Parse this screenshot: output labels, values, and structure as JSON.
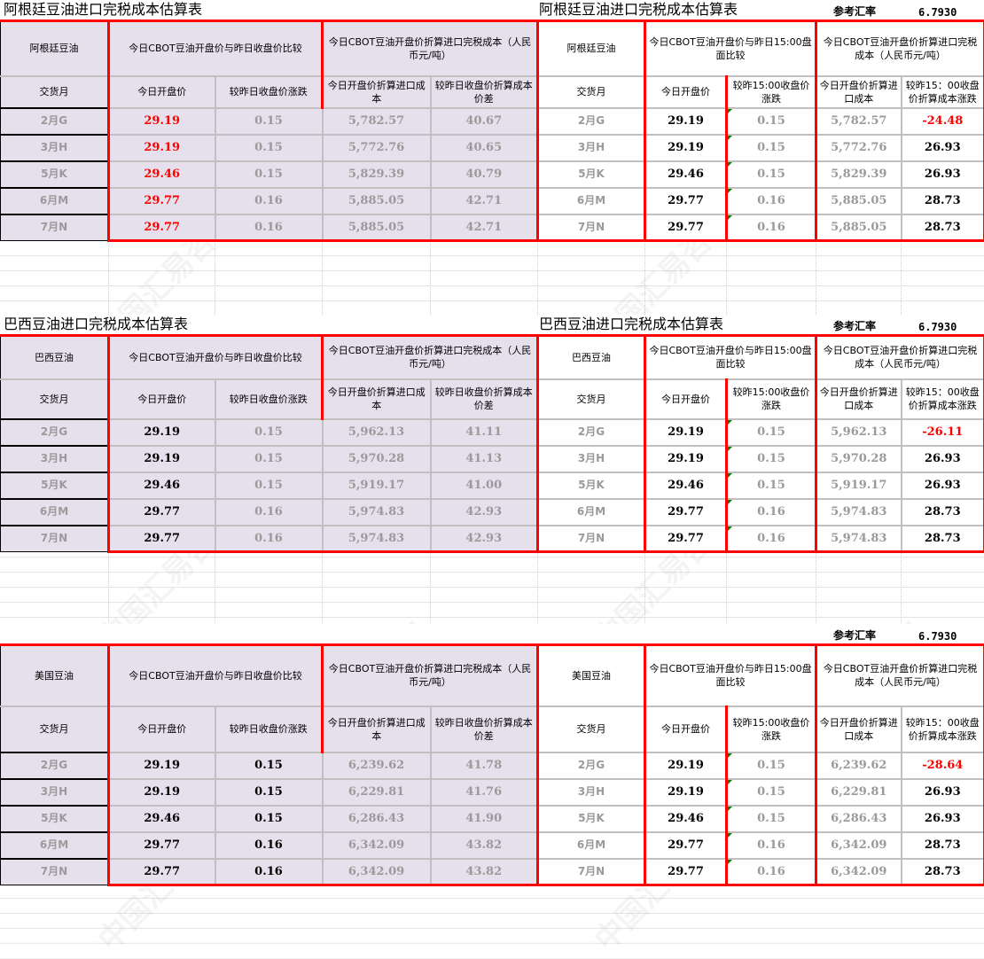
{
  "watermark": "中国汇易咨询网 ChinaJCI.COM",
  "colors": {
    "left_bg": "#e6e0ec",
    "border_red": "#ff0000",
    "highlight_red": "#ff0000",
    "muted_gray": "#9a9a9a"
  },
  "sections": [
    {
      "title_left": "阿根廷豆油进口完税成本估算表",
      "title_right": "阿根廷豆油进口完税成本估算表",
      "rate_label": "参考汇率",
      "rate_value": "6.7930",
      "left": {
        "product": "阿根廷豆油",
        "group1": "今日CBOT豆油开盘价与昨日收盘价比较",
        "group2": "今日CBOT豆油开盘价折算进口完税成本（人民币元/吨）",
        "sub": [
          "交货月",
          "今日开盘价",
          "较昨日收盘价涨跌",
          "今日开盘价折算进口成本",
          "较昨日收盘价折算成本价差"
        ],
        "rows": [
          [
            "2月G",
            "29.19",
            "0.15",
            "5,782.57",
            "40.67"
          ],
          [
            "3月H",
            "29.19",
            "0.15",
            "5,772.76",
            "40.65"
          ],
          [
            "5月K",
            "29.46",
            "0.15",
            "5,829.39",
            "40.79"
          ],
          [
            "6月M",
            "29.77",
            "0.16",
            "5,885.05",
            "42.71"
          ],
          [
            "7月N",
            "29.77",
            "0.16",
            "5,885.05",
            "42.71"
          ]
        ]
      },
      "right": {
        "product": "阿根廷豆油",
        "group1": "今日CBOT豆油开盘价与昨日15:00盘面比较",
        "group2": "今日CBOT豆油开盘价折算进口完税成本（人民币元/吨）",
        "sub": [
          "交货月",
          "今日开盘价",
          "较昨15:00收盘价涨跌",
          "今日开盘价折算进口成本",
          "较昨15：00收盘价折算成本涨跌"
        ],
        "rows": [
          [
            "2月G",
            "29.19",
            "0.15",
            "5,782.57",
            "-24.48"
          ],
          [
            "3月H",
            "29.19",
            "0.15",
            "5,772.76",
            "26.93"
          ],
          [
            "5月K",
            "29.46",
            "0.15",
            "5,829.39",
            "26.93"
          ],
          [
            "6月M",
            "29.77",
            "0.16",
            "5,885.05",
            "28.73"
          ],
          [
            "7月N",
            "29.77",
            "0.16",
            "5,885.05",
            "28.73"
          ]
        ]
      }
    },
    {
      "title_left": "巴西豆油进口完税成本估算表",
      "title_right": "巴西豆油进口完税成本估算表",
      "rate_label": "参考汇率",
      "rate_value": "6.7930",
      "left": {
        "product": "巴西豆油",
        "group1": "今日CBOT豆油开盘价与昨日收盘价比较",
        "group2": "今日CBOT豆油开盘价折算进口完税成本（人民币元/吨）",
        "sub": [
          "交货月",
          "今日开盘价",
          "较昨日收盘价涨跌",
          "今日开盘价折算进口成本",
          "较昨日收盘价折算成本价差"
        ],
        "rows": [
          [
            "2月G",
            "29.19",
            "0.15",
            "5,962.13",
            "41.11"
          ],
          [
            "3月H",
            "29.19",
            "0.15",
            "5,970.28",
            "41.13"
          ],
          [
            "5月K",
            "29.46",
            "0.15",
            "5,919.17",
            "41.00"
          ],
          [
            "6月M",
            "29.77",
            "0.16",
            "5,974.83",
            "42.93"
          ],
          [
            "7月N",
            "29.77",
            "0.16",
            "5,974.83",
            "42.93"
          ]
        ]
      },
      "right": {
        "product": "巴西豆油",
        "group1": "今日CBOT豆油开盘价与昨日15:00盘面比较",
        "group2": "今日CBOT豆油开盘价折算进口完税成本（人民币元/吨）",
        "sub": [
          "交货月",
          "今日开盘价",
          "较昨15:00收盘价涨跌",
          "今日开盘价折算进口成本",
          "较昨15：00收盘价折算成本涨跌"
        ],
        "rows": [
          [
            "2月G",
            "29.19",
            "0.15",
            "5,962.13",
            "-26.11"
          ],
          [
            "3月H",
            "29.19",
            "0.15",
            "5,970.28",
            "26.93"
          ],
          [
            "5月K",
            "29.46",
            "0.15",
            "5,919.17",
            "26.93"
          ],
          [
            "6月M",
            "29.77",
            "0.16",
            "5,974.83",
            "28.73"
          ],
          [
            "7月N",
            "29.77",
            "0.16",
            "5,974.83",
            "28.73"
          ]
        ]
      }
    },
    {
      "title_left": "",
      "title_right": "",
      "rate_label": "参考汇率",
      "rate_value": "6.7930",
      "left": {
        "product": "美国豆油",
        "group1": "今日CBOT豆油开盘价与昨日收盘价比较",
        "group2": "今日CBOT豆油开盘价折算进口完税成本（人民币元/吨）",
        "sub": [
          "交货月",
          "今日开盘价",
          "较昨日收盘价涨跌",
          "今日开盘价折算进口成本",
          "较昨日收盘价折算成本价差"
        ],
        "rows": [
          [
            "2月G",
            "29.19",
            "0.15",
            "6,239.62",
            "41.78"
          ],
          [
            "3月H",
            "29.19",
            "0.15",
            "6,229.81",
            "41.76"
          ],
          [
            "5月K",
            "29.46",
            "0.15",
            "6,286.43",
            "41.90"
          ],
          [
            "6月M",
            "29.77",
            "0.16",
            "6,342.09",
            "43.82"
          ],
          [
            "7月N",
            "29.77",
            "0.16",
            "6,342.09",
            "43.82"
          ]
        ]
      },
      "right": {
        "product": "美国豆油",
        "group1": "今日CBOT豆油开盘价与昨日15:00盘面比较",
        "group2": "今日CBOT豆油开盘价折算进口完税成本（人民币元/吨）",
        "sub": [
          "交货月",
          "今日开盘价",
          "较昨15:00收盘价涨跌",
          "今日开盘价折算进口成本",
          "较昨15：00收盘价折算成本涨跌"
        ],
        "rows": [
          [
            "2月G",
            "29.19",
            "0.15",
            "6,239.62",
            "-28.64"
          ],
          [
            "3月H",
            "29.19",
            "0.15",
            "6,229.81",
            "26.93"
          ],
          [
            "5月K",
            "29.46",
            "0.15",
            "6,286.43",
            "26.93"
          ],
          [
            "6月M",
            "29.77",
            "0.16",
            "6,342.09",
            "28.73"
          ],
          [
            "7月N",
            "29.77",
            "0.16",
            "6,342.09",
            "28.73"
          ]
        ]
      }
    }
  ]
}
